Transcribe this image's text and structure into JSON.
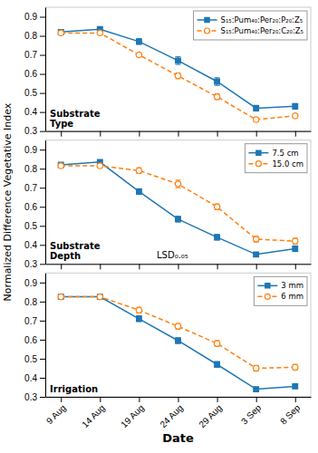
{
  "chart_data": [
    {
      "type": "line",
      "title": "Substrate\nType",
      "categories": [
        "9 Aug",
        "14 Aug",
        "19 Aug",
        "24 Aug",
        "29 Aug",
        "3 Sep",
        "8 Sep"
      ],
      "series": [
        {
          "name": "S₁₅:Pum₄₀:Per₂₀:P₂₀:Z₅",
          "marker": "square",
          "line_style": "solid",
          "values": [
            0.82,
            0.835,
            0.77,
            0.67,
            0.56,
            0.42,
            0.43
          ],
          "errors": [
            0.01,
            0.01,
            0.015,
            0.02,
            0.02,
            0.015,
            0.015
          ]
        },
        {
          "name": "S₁₅:Pum₄₀:Per₂₀:C₂₀:Z₅",
          "marker": "open-circle",
          "line_style": "dashed",
          "values": [
            0.815,
            0.815,
            0.7,
            0.59,
            0.48,
            0.36,
            0.38
          ],
          "errors": [
            0.01,
            0.01,
            0.01,
            0.015,
            0.015,
            0.01,
            0.01
          ]
        }
      ],
      "ylim": [
        0.3,
        0.95
      ],
      "yticks": [
        0.3,
        0.4,
        0.5,
        0.6,
        0.7,
        0.8,
        0.9
      ],
      "legend": "upper right",
      "grid": false,
      "tick_labels": "y"
    },
    {
      "type": "line",
      "title": "Substrate\nDepth",
      "ylabel": "Normalized Difference Vegetative Index",
      "annotations": [
        "LSD₀.₀₅"
      ],
      "categories": [
        "9 Aug",
        "14 Aug",
        "19 Aug",
        "24 Aug",
        "29 Aug",
        "3 Sep",
        "8 Sep"
      ],
      "series": [
        {
          "name": "7.5 cm",
          "marker": "square",
          "line_style": "solid",
          "values": [
            0.82,
            0.835,
            0.68,
            0.535,
            0.44,
            0.35,
            0.38
          ],
          "errors": [
            0.01,
            0.01,
            0.015,
            0.015,
            0.015,
            0.01,
            0.015
          ]
        },
        {
          "name": "15.0 cm",
          "marker": "open-circle",
          "line_style": "dashed",
          "values": [
            0.815,
            0.815,
            0.79,
            0.72,
            0.6,
            0.43,
            0.42
          ],
          "errors": [
            0.01,
            0.01,
            0.015,
            0.02,
            0.015,
            0.015,
            0.015
          ]
        }
      ],
      "ylim": [
        0.3,
        0.95
      ],
      "yticks": [
        0.3,
        0.4,
        0.5,
        0.6,
        0.7,
        0.8,
        0.9
      ],
      "legend": "upper right",
      "grid": false,
      "tick_labels": "y"
    },
    {
      "type": "line",
      "title": "Irrigation",
      "xlabel": "Date",
      "categories": [
        "9 Aug",
        "14 Aug",
        "19 Aug",
        "24 Aug",
        "29 Aug",
        "3 Sep",
        "8 Sep"
      ],
      "series": [
        {
          "name": "3 mm",
          "marker": "square",
          "line_style": "solid",
          "values": [
            0.825,
            0.825,
            0.71,
            0.595,
            0.47,
            0.34,
            0.355
          ],
          "errors": [
            0.01,
            0.01,
            0.015,
            0.015,
            0.015,
            0.01,
            0.01
          ]
        },
        {
          "name": "6 mm",
          "marker": "open-circle",
          "line_style": "dashed",
          "values": [
            0.825,
            0.825,
            0.755,
            0.67,
            0.58,
            0.45,
            0.455
          ],
          "errors": [
            0.01,
            0.01,
            0.015,
            0.015,
            0.015,
            0.015,
            0.015
          ]
        }
      ],
      "ylim": [
        0.3,
        0.95
      ],
      "yticks": [
        0.3,
        0.4,
        0.5,
        0.6,
        0.7,
        0.8,
        0.9
      ],
      "legend": "upper right",
      "grid": false
    }
  ]
}
